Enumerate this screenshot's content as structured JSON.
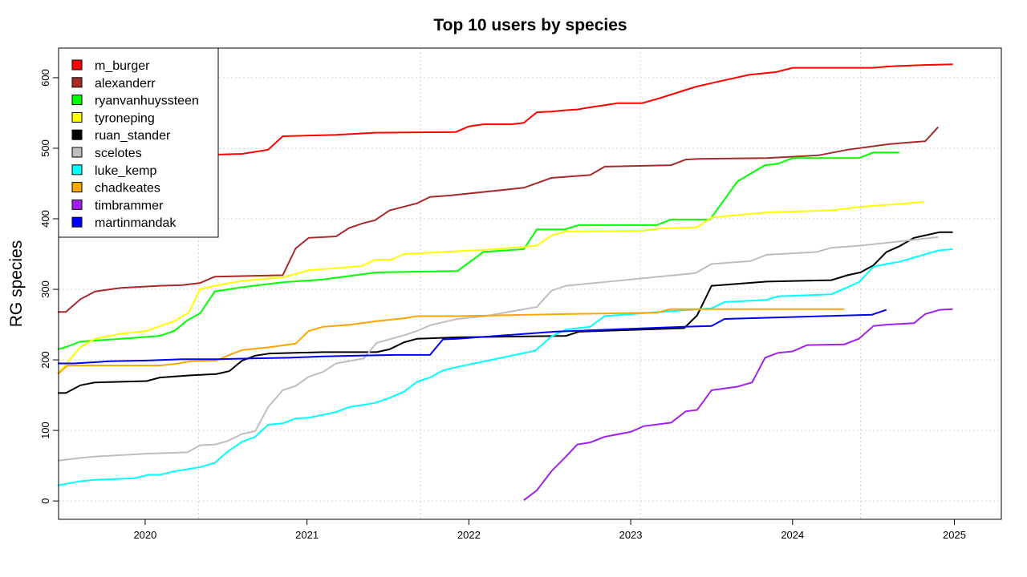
{
  "chart_data": {
    "type": "line",
    "title": "Top 10 users by species",
    "xlabel": "",
    "ylabel": "RG species",
    "xlim": [
      2019.465,
      2025.29
    ],
    "ylim": [
      -26,
      642
    ],
    "x_ticks": [
      2020,
      2021,
      2022,
      2023,
      2024,
      2025
    ],
    "x_tick_labels": [
      "2020",
      "2021",
      "2022",
      "2023",
      "2024",
      "2025"
    ],
    "y_ticks": [
      0,
      100,
      200,
      300,
      400,
      500,
      600
    ],
    "y_tick_labels": [
      "0",
      "100",
      "200",
      "300",
      "400",
      "500",
      "600"
    ],
    "grid": true,
    "x_gridlines": [
      2020.33,
      2021.7,
      2023.06,
      2024.42
    ],
    "legend_position": "top-left",
    "series": [
      {
        "name": "m_burger",
        "color": "#FF0000",
        "x": [
          2020.4,
          2020.45,
          2020.6,
          2020.76,
          2020.85,
          2021.18,
          2021.42,
          2021.92,
          2022.0,
          2022.09,
          2022.26,
          2022.34,
          2022.42,
          2022.51,
          2022.6,
          2022.67,
          2022.75,
          2022.84,
          2022.92,
          2023.07,
          2023.18,
          2023.4,
          2023.53,
          2023.73,
          2023.9,
          2024.0,
          2024.49,
          2024.6,
          2024.81,
          2024.99
        ],
        "y": [
          490,
          491,
          492,
          498,
          517,
          519,
          522,
          523,
          531,
          534,
          534,
          536,
          551,
          552,
          554,
          555,
          558,
          561,
          564,
          564,
          571,
          587,
          594,
          604,
          608,
          614,
          614,
          616,
          618,
          619
        ]
      },
      {
        "name": "alexanderr",
        "color": "#A52A2A",
        "x": [
          2019.46,
          2019.51,
          2019.6,
          2019.69,
          2019.85,
          2020.09,
          2020.23,
          2020.34,
          2020.43,
          2020.85,
          2020.93,
          2021.01,
          2021.18,
          2021.26,
          2021.35,
          2021.42,
          2021.51,
          2021.68,
          2021.76,
          2021.88,
          2022.34,
          2022.51,
          2022.75,
          2022.84,
          2023.25,
          2023.34,
          2023.42,
          2023.84,
          2024.16,
          2024.34,
          2024.6,
          2024.82,
          2024.9
        ],
        "y": [
          268,
          268,
          286,
          297,
          302,
          305,
          306,
          309,
          318,
          320,
          358,
          373,
          375,
          387,
          394,
          398,
          412,
          422,
          431,
          433,
          444,
          458,
          462,
          474,
          476,
          484,
          485,
          486,
          490,
          498,
          506,
          510,
          530
        ]
      },
      {
        "name": "ryanvanhuyssteen",
        "color": "#00FF00",
        "x": [
          2019.46,
          2019.51,
          2019.6,
          2019.85,
          2020.09,
          2020.18,
          2020.26,
          2020.34,
          2020.43,
          2020.6,
          2020.85,
          2021.1,
          2021.43,
          2021.93,
          2022.09,
          2022.34,
          2022.42,
          2022.59,
          2022.68,
          2023.16,
          2023.25,
          2023.49,
          2023.66,
          2023.83,
          2023.91,
          2024.0,
          2024.41,
          2024.5,
          2024.66
        ],
        "y": [
          215,
          218,
          226,
          230,
          234,
          241,
          256,
          266,
          297,
          303,
          310,
          314,
          324,
          326,
          353,
          357,
          385,
          385,
          391,
          391,
          399,
          399,
          453,
          476,
          478,
          486,
          486,
          494,
          494
        ]
      },
      {
        "name": "tyroneping",
        "color": "#FFFF00",
        "x": [
          2019.46,
          2019.53,
          2019.6,
          2019.69,
          2019.85,
          2020.01,
          2020.18,
          2020.27,
          2020.34,
          2020.43,
          2020.6,
          2020.85,
          2021.01,
          2021.18,
          2021.34,
          2021.42,
          2021.52,
          2021.6,
          2021.76,
          2021.93,
          2022.1,
          2022.34,
          2022.42,
          2022.51,
          2022.6,
          2023.07,
          2023.18,
          2023.41,
          2023.5,
          2023.84,
          2024.24,
          2024.42,
          2024.66,
          2024.81
        ],
        "y": [
          180,
          199,
          218,
          230,
          237,
          241,
          255,
          267,
          300,
          305,
          312,
          317,
          327,
          330,
          333,
          342,
          342,
          350,
          352,
          354,
          356,
          360,
          362,
          376,
          382,
          383,
          386,
          388,
          402,
          409,
          412,
          417,
          421,
          424
        ]
      },
      {
        "name": "ruan_stander",
        "color": "#000000",
        "x": [
          2019.46,
          2019.51,
          2019.6,
          2019.69,
          2019.85,
          2020.01,
          2020.09,
          2020.28,
          2020.44,
          2020.52,
          2020.6,
          2020.68,
          2020.77,
          2021.1,
          2021.43,
          2021.51,
          2021.6,
          2021.68,
          2021.93,
          2022.6,
          2022.68,
          2023.33,
          2023.41,
          2023.5,
          2023.84,
          2024.24,
          2024.34,
          2024.42,
          2024.5,
          2024.58,
          2024.66,
          2024.75,
          2024.91,
          2024.99
        ],
        "y": [
          153,
          153,
          164,
          168,
          169,
          170,
          175,
          178,
          180,
          184,
          199,
          206,
          209,
          211,
          211,
          215,
          225,
          230,
          232,
          234,
          240,
          245,
          263,
          305,
          311,
          313,
          320,
          324,
          334,
          353,
          361,
          373,
          381,
          381
        ]
      },
      {
        "name": "scelotes",
        "color": "#BEBEBE",
        "x": [
          2019.46,
          2019.6,
          2019.69,
          2020.01,
          2020.26,
          2020.34,
          2020.43,
          2020.51,
          2020.6,
          2020.68,
          2020.76,
          2020.85,
          2020.93,
          2021.01,
          2021.1,
          2021.18,
          2021.35,
          2021.43,
          2021.6,
          2021.68,
          2021.76,
          2021.93,
          2022.1,
          2022.42,
          2022.51,
          2022.6,
          2023.05,
          2023.4,
          2023.5,
          2023.74,
          2023.84,
          2024.15,
          2024.24,
          2024.42,
          2024.66,
          2024.9
        ],
        "y": [
          57,
          61,
          63,
          67,
          69,
          79,
          80,
          85,
          95,
          99,
          133,
          157,
          163,
          176,
          183,
          195,
          202,
          224,
          235,
          241,
          249,
          258,
          262,
          275,
          298,
          305,
          315,
          323,
          336,
          340,
          349,
          353,
          359,
          362,
          368,
          374
        ]
      },
      {
        "name": "luke_kemp",
        "color": "#00FFFF",
        "x": [
          2019.46,
          2019.6,
          2019.69,
          2019.93,
          2020.02,
          2020.09,
          2020.18,
          2020.34,
          2020.43,
          2020.51,
          2020.6,
          2020.68,
          2020.76,
          2020.85,
          2020.93,
          2021.01,
          2021.18,
          2021.26,
          2021.42,
          2021.51,
          2021.6,
          2021.68,
          2021.76,
          2021.84,
          2021.93,
          2022.41,
          2022.51,
          2022.6,
          2022.75,
          2022.84,
          2023.18,
          2023.5,
          2023.58,
          2023.84,
          2023.91,
          2024.24,
          2024.41,
          2024.5,
          2024.58,
          2024.66,
          2024.9,
          2024.99
        ],
        "y": [
          22,
          28,
          30,
          32,
          37,
          37,
          42,
          48,
          54,
          70,
          84,
          91,
          108,
          110,
          117,
          118,
          126,
          133,
          139,
          146,
          155,
          169,
          175,
          185,
          190,
          213,
          233,
          243,
          247,
          262,
          268,
          273,
          282,
          285,
          290,
          293,
          310,
          332,
          336,
          339,
          355,
          357
        ]
      },
      {
        "name": "chadkeates",
        "color": "#FFA500",
        "x": [
          2019.46,
          2019.52,
          2020.09,
          2020.18,
          2020.28,
          2020.44,
          2020.52,
          2020.6,
          2020.77,
          2020.93,
          2021.01,
          2021.1,
          2021.27,
          2021.43,
          2021.6,
          2021.68,
          2021.93,
          2022.6,
          2023.16,
          2023.25,
          2024.32
        ],
        "y": [
          180,
          192,
          192,
          194,
          198,
          199,
          207,
          214,
          218,
          223,
          241,
          247,
          250,
          255,
          259,
          262,
          262,
          265,
          267,
          272,
          272
        ]
      },
      {
        "name": "timbrammer",
        "color": "#A020F0",
        "x": [
          2022.34,
          2022.42,
          2022.51,
          2022.6,
          2022.67,
          2022.75,
          2022.84,
          2023.0,
          2023.08,
          2023.25,
          2023.34,
          2023.41,
          2023.5,
          2023.66,
          2023.75,
          2023.83,
          2023.91,
          2024.0,
          2024.09,
          2024.32,
          2024.41,
          2024.5,
          2024.58,
          2024.75,
          2024.82,
          2024.91,
          2024.99
        ],
        "y": [
          1,
          15,
          42,
          63,
          80,
          83,
          91,
          98,
          106,
          111,
          127,
          129,
          157,
          162,
          168,
          203,
          210,
          212,
          221,
          222,
          230,
          248,
          250,
          252,
          265,
          271,
          272
        ]
      },
      {
        "name": "martinmandak",
        "color": "#0000FF",
        "x": [
          2019.46,
          2019.56,
          2019.78,
          2020.01,
          2020.23,
          2020.44,
          2020.65,
          2020.89,
          2021.1,
          2021.32,
          2021.55,
          2021.76,
          2021.84,
          2021.93,
          2022.53,
          2023.33,
          2023.5,
          2023.58,
          2024.49,
          2024.58
        ],
        "y": [
          195,
          195,
          198,
          199,
          201,
          201,
          202,
          203,
          205,
          206,
          207,
          207,
          229,
          230,
          240,
          247,
          248,
          258,
          264,
          271
        ]
      }
    ]
  }
}
